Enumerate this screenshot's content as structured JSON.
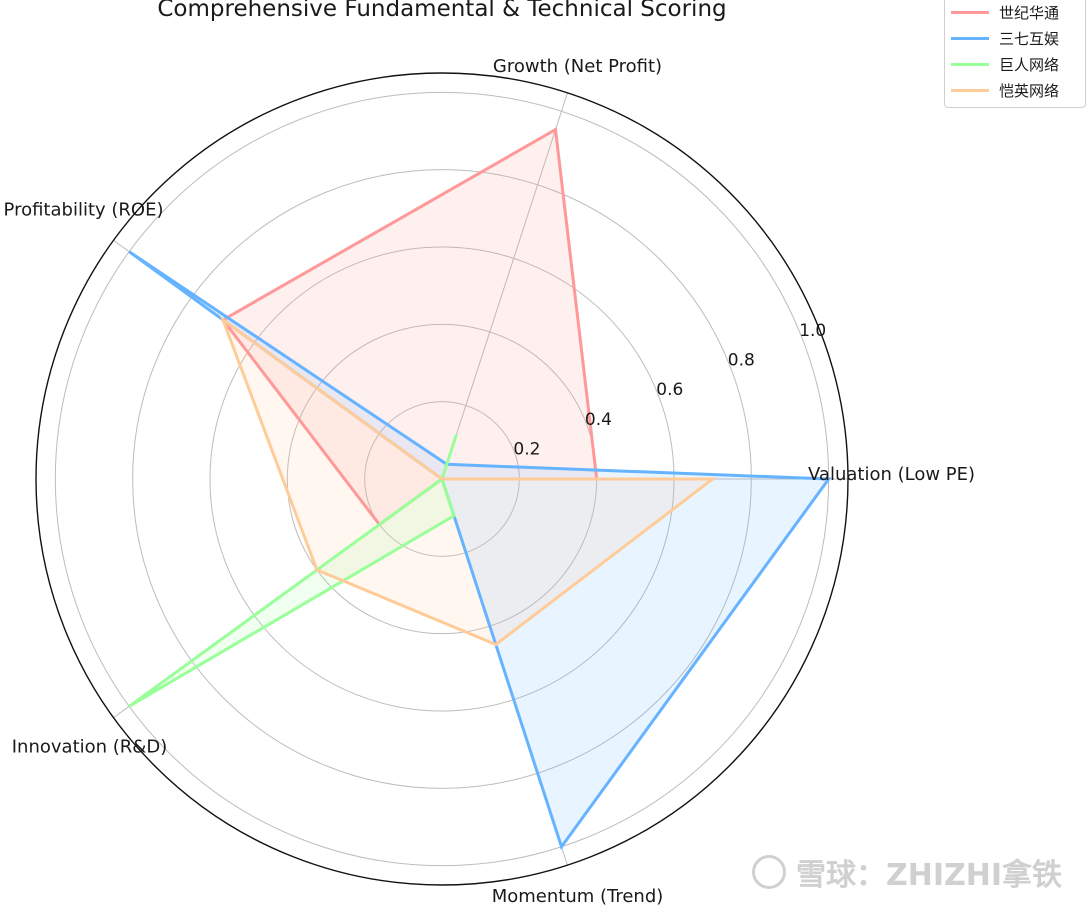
{
  "chart_data": {
    "type": "radar",
    "title": "Comprehensive Fundamental & Technical Scoring",
    "axes": [
      "Valuation (Low PE)",
      "Growth (Net Profit)",
      "Profitability (ROE)",
      "Innovation (R&D)",
      "Momentum (Trend)"
    ],
    "radial_ticks": [
      "0.2",
      "0.4",
      "0.6",
      "0.8",
      "1.0"
    ],
    "rlim": [
      0,
      1.05
    ],
    "grid": true,
    "legend_position": "top-right",
    "series": [
      {
        "name": "世纪华通",
        "color": "#ff9999",
        "values": [
          0.4,
          0.95,
          0.7,
          0.2,
          0.0
        ]
      },
      {
        "name": "三七互娱",
        "color": "#66b3ff",
        "values": [
          1.0,
          0.04,
          1.0,
          0.0,
          1.0
        ]
      },
      {
        "name": "巨人网络",
        "color": "#99ff99",
        "values": [
          0.0,
          0.12,
          0.0,
          1.0,
          0.1
        ]
      },
      {
        "name": "恺英网络",
        "color": "#ffcc99",
        "values": [
          0.7,
          0.0,
          0.7,
          0.4,
          0.45
        ]
      }
    ]
  },
  "watermark": {
    "text": "雪球：ZHIZHI拿铁"
  }
}
